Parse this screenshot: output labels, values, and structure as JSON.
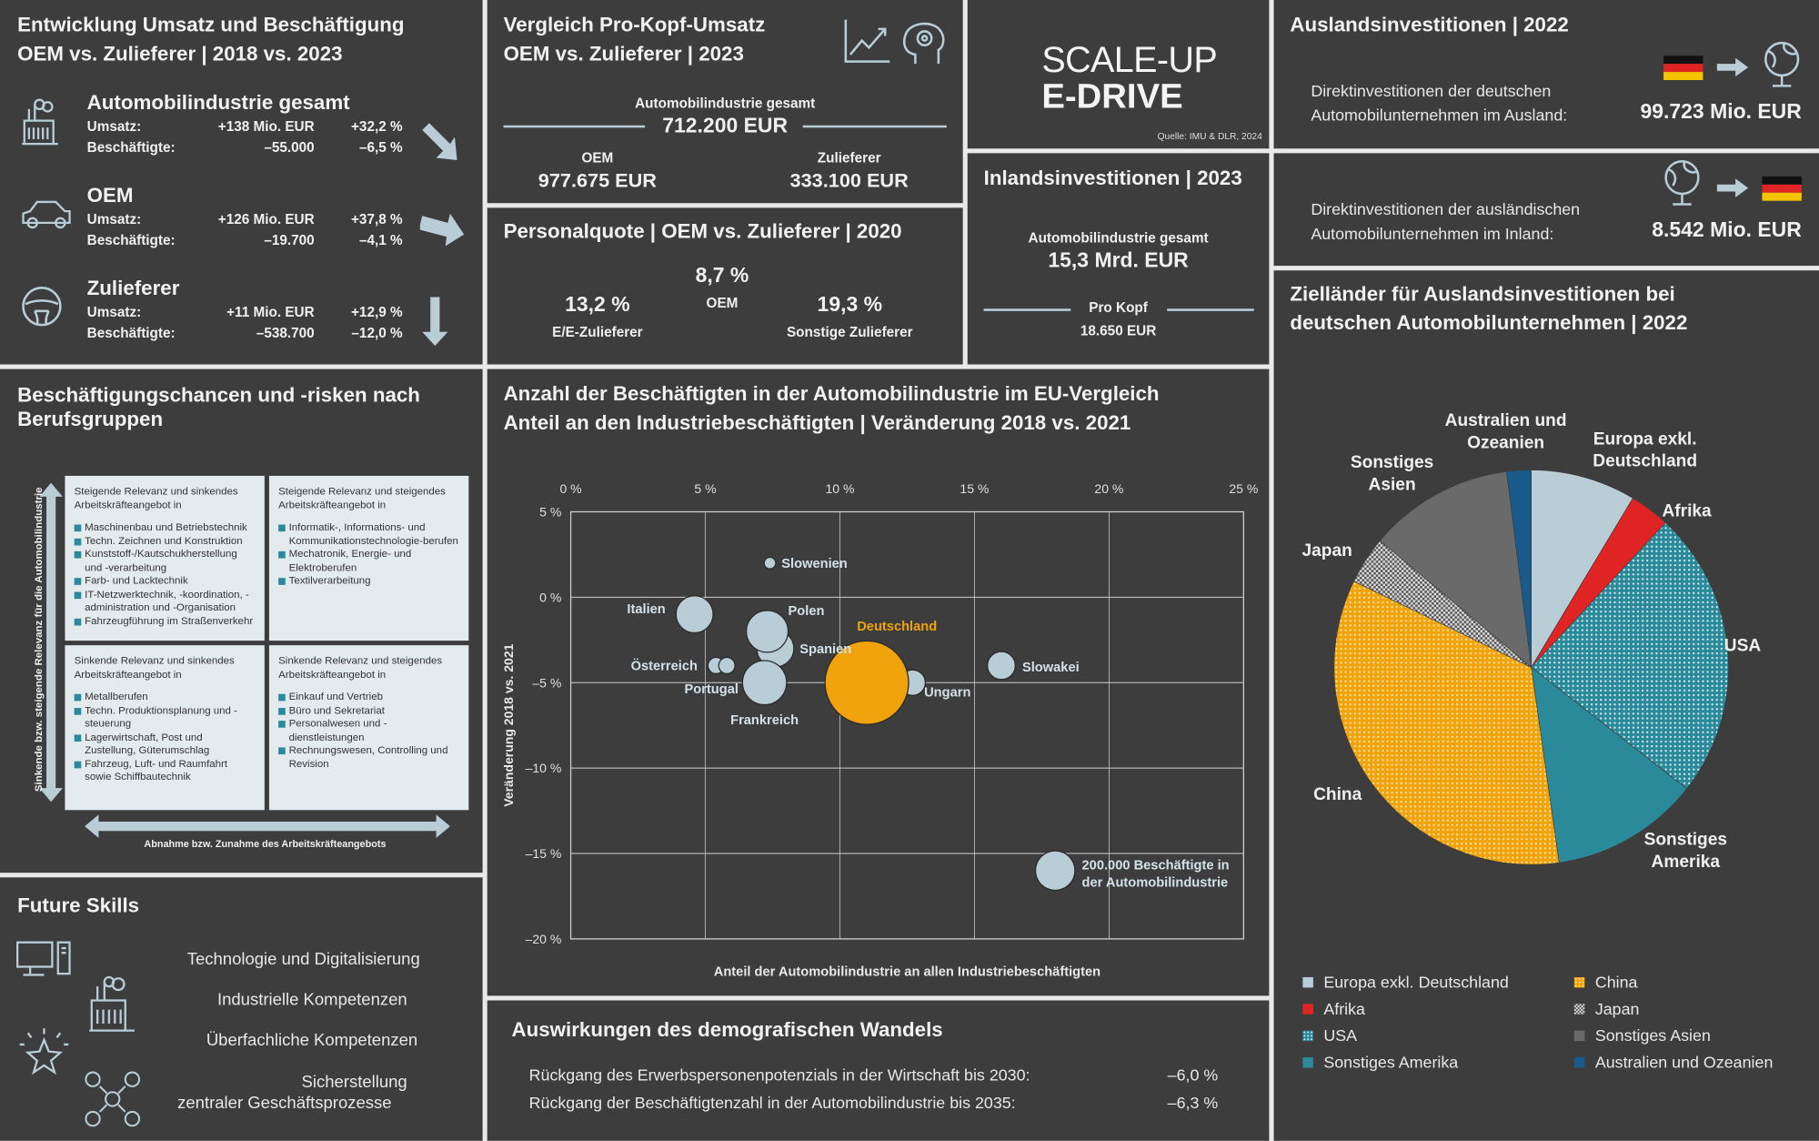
{
  "revenue_panel": {
    "title_1": "Entwicklung Umsatz und Beschäftigung",
    "title_2": "OEM vs. Zulieferer | 2018 vs. 2023",
    "groups": [
      {
        "name": "Automobilindustrie gesamt",
        "icon": "factory-icon",
        "revenue_label": "Umsatz:",
        "revenue_abs": "+138 Mio. EUR",
        "revenue_pct": "+32,2 %",
        "emp_label": "Beschäftigte:",
        "emp_abs": "–55.000",
        "emp_pct": "–6,5 %",
        "trend": "down-right"
      },
      {
        "name": "OEM",
        "icon": "car-icon",
        "revenue_label": "Umsatz:",
        "revenue_abs": "+126 Mio. EUR",
        "revenue_pct": "+37,8 %",
        "emp_label": "Beschäftigte:",
        "emp_abs": "–19.700",
        "emp_pct": "–4,1 %",
        "trend": "slight-down"
      },
      {
        "name": "Zulieferer",
        "icon": "steering-wheel-icon",
        "revenue_label": "Umsatz:",
        "revenue_abs": "+11 Mio. EUR",
        "revenue_pct": "+12,9 %",
        "emp_label": "Beschäftigte:",
        "emp_abs": "–538.700",
        "emp_pct": "–12,0 %",
        "trend": "down"
      }
    ]
  },
  "per_capita": {
    "title_1": "Vergleich Pro-Kopf-Umsatz",
    "title_2": "OEM vs. Zulieferer | 2023",
    "total_label": "Automobilindustrie gesamt",
    "total_value": "712.200 EUR",
    "oem_label": "OEM",
    "oem_value": "977.675 EUR",
    "supplier_label": "Zulieferer",
    "supplier_value": "333.100 EUR"
  },
  "staff_ratio": {
    "title": "Personalquote | OEM vs. Zulieferer | 2020",
    "oem_value": "8,7 %",
    "oem_label": "OEM",
    "ee_value": "13,2 %",
    "ee_label": "E/E-Zulieferer",
    "other_value": "19,3 %",
    "other_label": "Sonstige Zulieferer"
  },
  "brand": {
    "line1": "SCALE-UP",
    "line2": "E-DRIVE",
    "source": "Quelle: IMU & DLR, 2024"
  },
  "domestic": {
    "title": "Inlandsinvestitionen | 2023",
    "total_label": "Automobilindustrie gesamt",
    "total_value": "15,3 Mrd. EUR",
    "per_head_label": "Pro Kopf",
    "per_head_value": "18.650 EUR"
  },
  "foreign": {
    "title": "Auslandsinvestitionen | 2022",
    "out_text_1": "Direktinvestitionen der deutschen",
    "out_text_2": "Automobilunternehmen im Ausland:",
    "out_value": "99.723 Mio. EUR",
    "in_text_1": "Direktinvestitionen der ausländischen",
    "in_text_2": "Automobilunternehmen im Inland:",
    "in_value": "8.542 Mio. EUR"
  },
  "occupations": {
    "title_1": "Beschäftigungschancen und -risken nach",
    "title_2": "Berufsgruppen",
    "y_axis": "Sinkende bzw. steigende Relevanz für die Automobilindustrie",
    "x_axis": "Abnahme bzw. Zunahme des Arbeitskräfteangebots",
    "quadrants": [
      {
        "heading": "Steigende Relevanz und sinkendes Arbeitskräfteangebot in",
        "items": [
          "Maschinenbau und Betriebstechnik",
          "Techn. Zeichnen und Konstruktion",
          "Kunststoff-/Kautschukherstellung und -verarbeitung",
          "Farb- und Lacktechnik",
          "IT-Netzwerktechnik, -koordination, -administration und -Organisation",
          "Fahrzeugführung im Straßenverkehr"
        ]
      },
      {
        "heading": "Steigende Relevanz und steigendes Arbeitskräfteangebot in",
        "items": [
          "Informatik-, Informations- und Kommunikationstechnologie-berufen",
          "Mechatronik, Energie- und Elektroberufen",
          "Textilverarbeitung"
        ]
      },
      {
        "heading": "Sinkende Relevanz und sinkendes Arbeitskräfteangebot in",
        "items": [
          "Metallberufen",
          "Techn. Produktionsplanung und -steuerung",
          "Lagerwirtschaft, Post und Zustellung, Güterumschlag",
          "Fahrzeug, Luft- und Raumfahrt sowie Schiffbautechnik"
        ]
      },
      {
        "heading": "Sinkende Relevanz und steigendes Arbeitskräfteangebot in",
        "items": [
          "Einkauf und Vertrieb",
          "Büro und Sekretariat",
          "Personalwesen und -dienstleistungen",
          "Rechnungswesen, Controlling und Revision"
        ]
      }
    ]
  },
  "future_skills": {
    "title": "Future Skills",
    "items": [
      "Technologie und Digitalisierung",
      "Industrielle Kompetenzen",
      "Überfachliche Kompetenzen",
      "Sicherstellung",
      "zentraler Geschäftsprozesse"
    ]
  },
  "demography": {
    "title": "Auswirkungen des demografischen Wandels",
    "rows": [
      {
        "label": "Rückgang des Erwerbspersonenpotenzials in der Wirtschaft bis 2030:",
        "value": "–6,0 %"
      },
      {
        "label": "Rückgang der Beschäftigtenzahl in der Automobilindustrie bis 2035:",
        "value": "–6,3 %"
      }
    ]
  },
  "chart_data": [
    {
      "type": "scatter",
      "title": "Anzahl der Beschäftigten in der Automobilindustrie im EU-Vergleich",
      "subtitle": "Anteil an den Industriebeschäftigten | Veränderung 2018 vs. 2021",
      "xlabel": "Anteil der Automobilindustrie an allen Industriebeschäftigten",
      "ylabel": "Veränderung 2018 vs. 2021",
      "xlim": [
        0,
        25
      ],
      "ylim": [
        -20,
        5
      ],
      "x_ticks": [
        "0 %",
        "5 %",
        "10 %",
        "15 %",
        "20 %",
        "25 %"
      ],
      "y_ticks": [
        "5 %",
        "0 %",
        "–5 %",
        "–10 %",
        "–15 %",
        "–20 %"
      ],
      "grid": true,
      "highlight_color": "#f0a30a",
      "bubble_color": "#b8cdd6",
      "points": [
        {
          "name": "Slowenien",
          "x": 7.4,
          "y": 2.0,
          "employees": 17000
        },
        {
          "name": "Italien",
          "x": 4.6,
          "y": -1.0,
          "employees": 177000
        },
        {
          "name": "Spanien",
          "x": 7.6,
          "y": -3.0,
          "employees": 177000
        },
        {
          "name": "Polen",
          "x": 7.3,
          "y": -2.0,
          "employees": 224000
        },
        {
          "name": "Österreich",
          "x": 5.4,
          "y": -4.0,
          "employees": 34000
        },
        {
          "name": "Portugal",
          "x": 5.8,
          "y": -4.0,
          "employees": 34000
        },
        {
          "name": "Frankreich",
          "x": 7.2,
          "y": -5.0,
          "employees": 250000
        },
        {
          "name": "Ungarn",
          "x": 12.7,
          "y": -5.0,
          "employees": 84000
        },
        {
          "name": "Deutschland",
          "x": 11.0,
          "y": -5.0,
          "employees": 897000,
          "highlight": true
        },
        {
          "name": "Slowakei",
          "x": 16.0,
          "y": -4.0,
          "employees": 100000
        }
      ],
      "size_legend": {
        "x": 18.0,
        "y": -16.0,
        "employees": 200000,
        "label_1": "200.000 Beschäftigte in",
        "label_2": "der Automobilindustrie"
      }
    },
    {
      "type": "pie",
      "title_1": "Zielländer für Auslandsinvestitionen bei",
      "title_2": "deutschen Automobilunternehmen | 2022",
      "slices": [
        {
          "name": "Europa exkl. Deutschland",
          "label_1": "Europa exkl.",
          "label_2": "Deutschland",
          "value": 8.6,
          "color": "#b8cdd6",
          "pattern": "solid"
        },
        {
          "name": "Afrika",
          "label_1": "Afrika",
          "value": 3.3,
          "color": "#e02424",
          "pattern": "solid"
        },
        {
          "name": "USA",
          "label_1": "USA",
          "value": 23.6,
          "color": "#2a8a9a",
          "pattern": "dots"
        },
        {
          "name": "Sonstiges Amerika",
          "label_1": "Sonstiges",
          "label_2": "Amerika",
          "value": 12.2,
          "color": "#2a8a9a",
          "pattern": "solid"
        },
        {
          "name": "China",
          "label_1": "China",
          "value": 34.4,
          "color": "#f0a30a",
          "pattern": "dots"
        },
        {
          "name": "Japan",
          "label_1": "Japan",
          "value": 3.9,
          "color": "#8a8a8a",
          "pattern": "check"
        },
        {
          "name": "Sonstiges Asien",
          "label_1": "Sonstiges",
          "label_2": "Asien",
          "value": 11.9,
          "color": "#6a6a6a",
          "pattern": "solid"
        },
        {
          "name": "Australien und Ozeanien",
          "label_1": "Australien und",
          "label_2": "Ozeanien",
          "value": 2.0,
          "color": "#1a5a8a",
          "pattern": "solid"
        }
      ]
    }
  ]
}
